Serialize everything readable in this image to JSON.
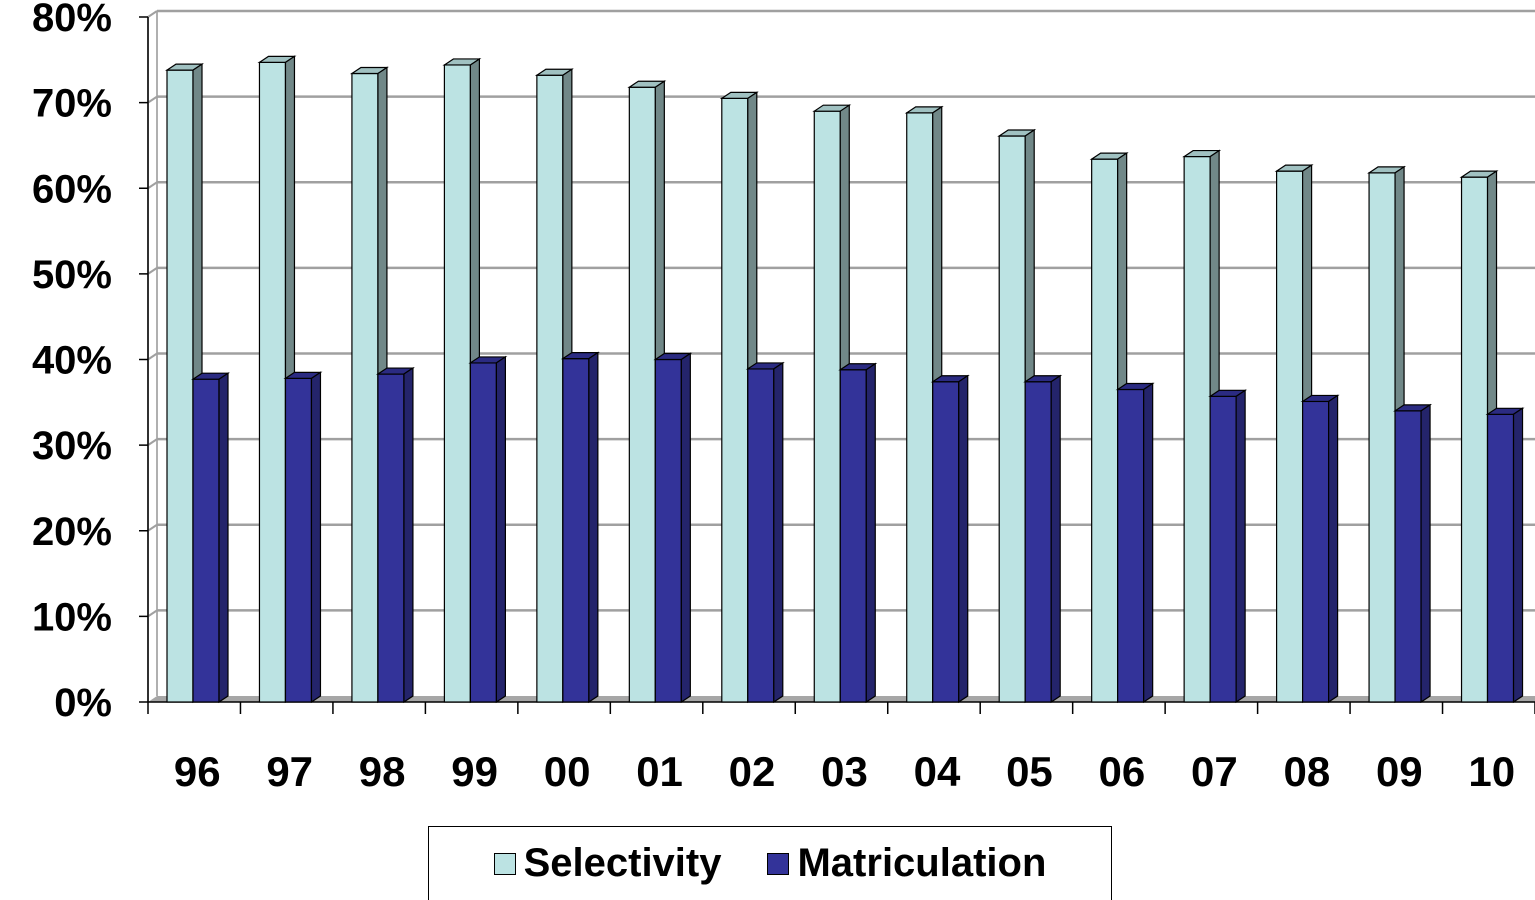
{
  "chart_data": {
    "type": "bar",
    "categories": [
      "96",
      "97",
      "98",
      "99",
      "00",
      "01",
      "02",
      "03",
      "04",
      "05",
      "06",
      "07",
      "08",
      "09",
      "10"
    ],
    "series": [
      {
        "name": "Selectivity",
        "color": "#BCE3E3",
        "values": [
          73.8,
          74.7,
          73.4,
          74.4,
          73.2,
          71.8,
          70.5,
          69.0,
          68.8,
          66.1,
          63.4,
          63.7,
          62.0,
          61.8,
          61.3
        ]
      },
      {
        "name": "Matriculation",
        "color": "#333399",
        "values": [
          37.7,
          37.8,
          38.3,
          39.6,
          40.1,
          40.0,
          38.9,
          38.8,
          37.4,
          37.4,
          36.5,
          35.7,
          35.1,
          34.0,
          33.6
        ]
      }
    ],
    "y_tick_labels": [
      "0%",
      "10%",
      "20%",
      "30%",
      "40%",
      "50%",
      "60%",
      "70%",
      "80%"
    ],
    "ylim": [
      0,
      80
    ],
    "grid": true,
    "legend_position": "bottom"
  }
}
